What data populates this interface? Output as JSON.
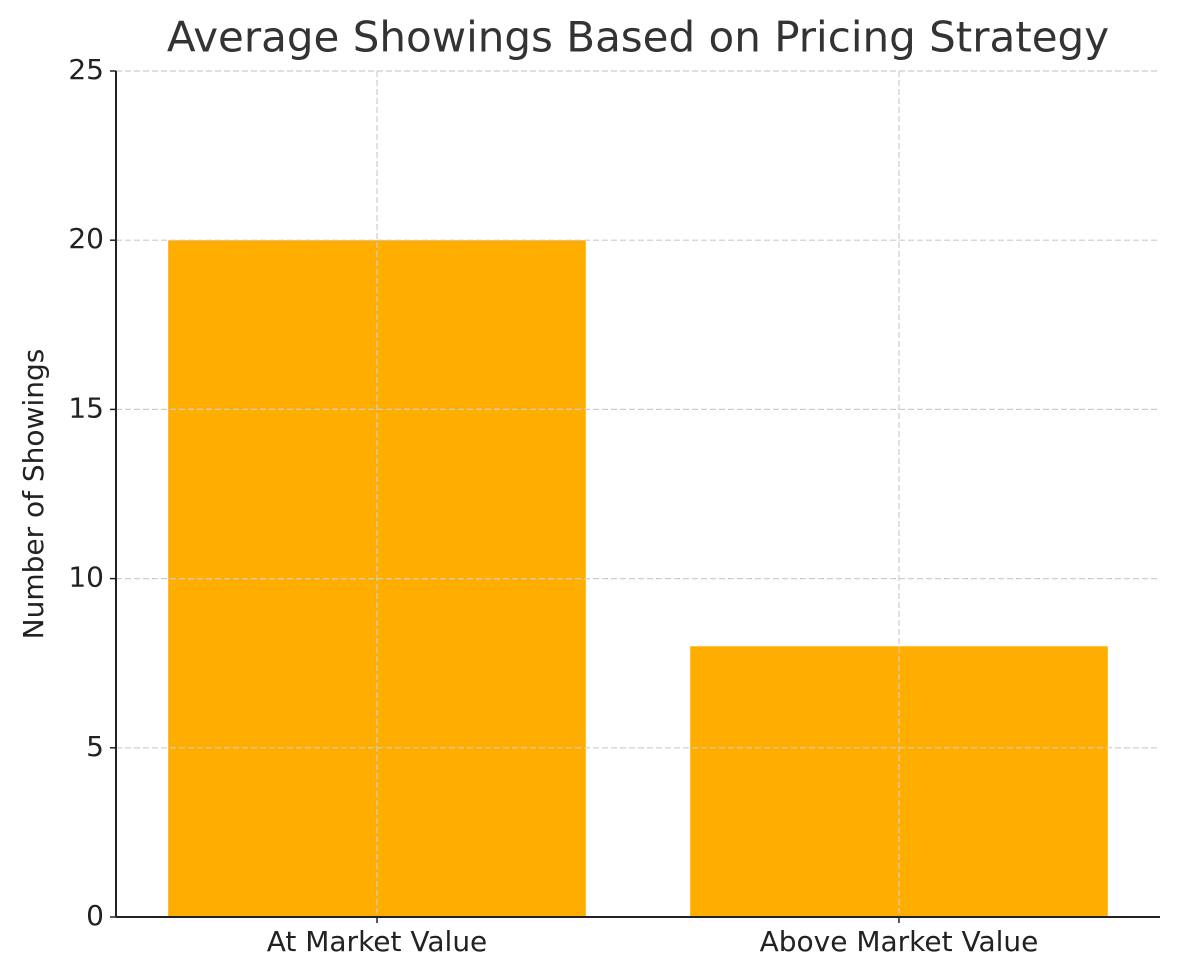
{
  "chart_data": {
    "type": "bar",
    "title": "Average Showings Based on Pricing Strategy",
    "y_label": "Number of Showings",
    "categories": [
      "At Market Value",
      "Above Market Value"
    ],
    "values": [
      20,
      8
    ],
    "color": "#ffae00",
    "ylim": [
      0,
      25
    ],
    "yticks": [
      0,
      5,
      10,
      15,
      20,
      25
    ],
    "grid": true
  }
}
